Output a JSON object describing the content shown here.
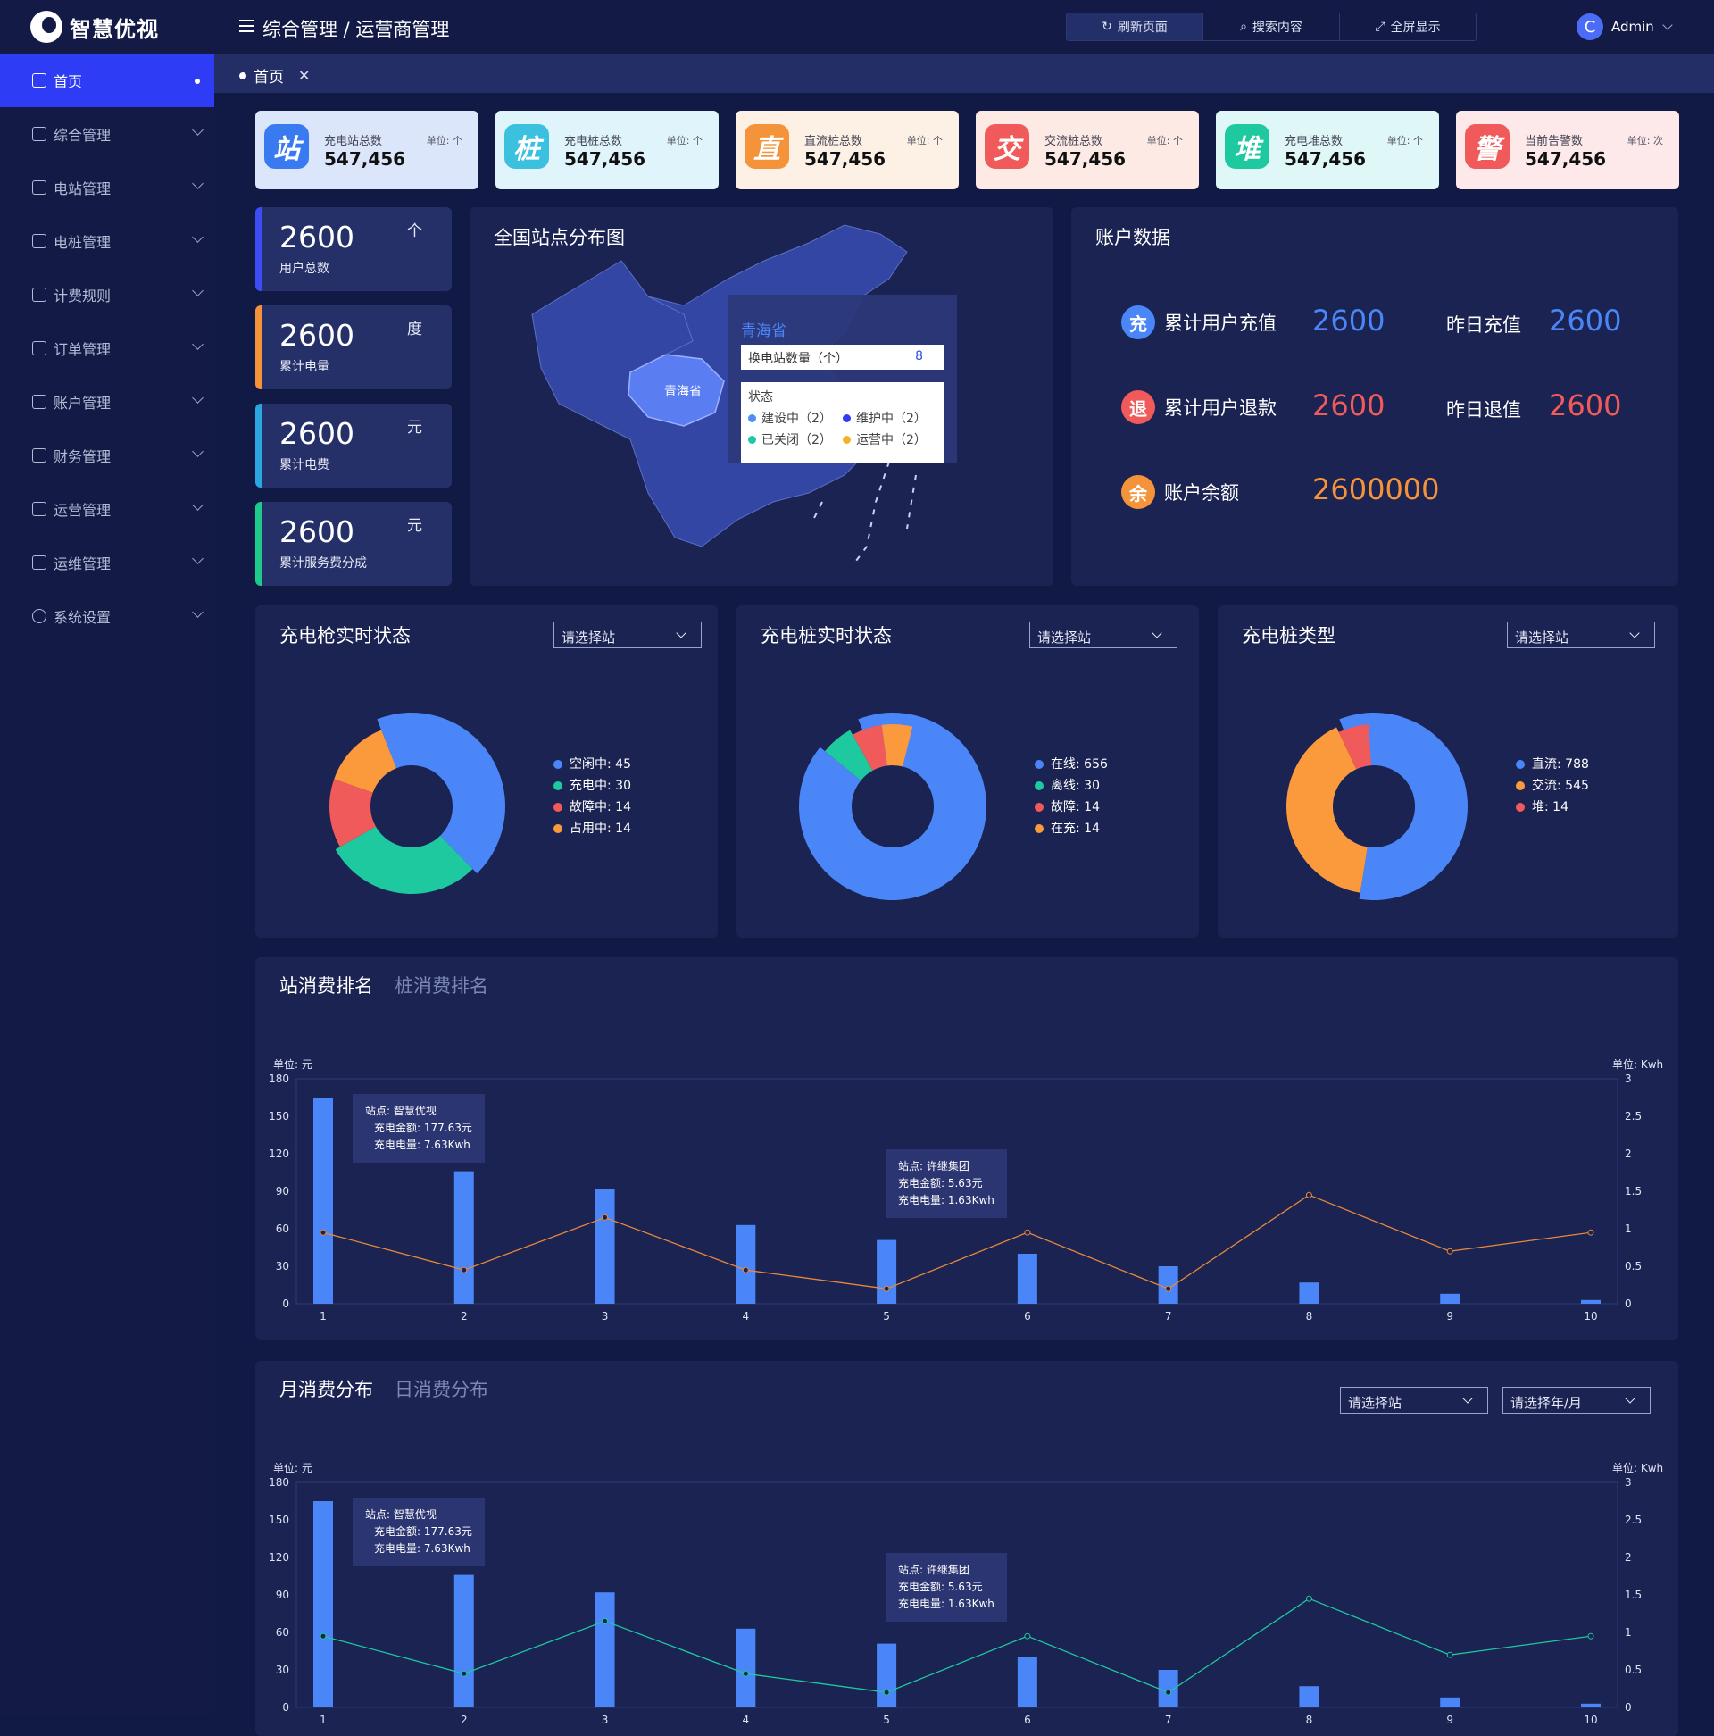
{
  "app": {
    "logo": "智慧优视",
    "breadcrumb": "综合管理 / 运营商管理",
    "user": "Admin",
    "avatar_letter": "C"
  },
  "toolbar": {
    "refresh": "刷新页面",
    "search": "搜索内容",
    "fullscreen": "全屏显示"
  },
  "tab": {
    "label": "首页",
    "close": "✕"
  },
  "sidebar": {
    "items": [
      {
        "label": "首页"
      },
      {
        "label": "综合管理"
      },
      {
        "label": "电站管理"
      },
      {
        "label": "电桩管理"
      },
      {
        "label": "计费规则"
      },
      {
        "label": "订单管理"
      },
      {
        "label": "账户管理"
      },
      {
        "label": "财务管理"
      },
      {
        "label": "运营管理"
      },
      {
        "label": "运维管理"
      },
      {
        "label": "系统设置"
      }
    ]
  },
  "stats": [
    {
      "icon": "站",
      "label": "充电站总数",
      "unit": "单位: 个",
      "value": "547,456",
      "color": "#3a7af0",
      "bg": "#dbe6fb"
    },
    {
      "icon": "桩",
      "label": "充电桩总数",
      "unit": "单位: 个",
      "value": "547,456",
      "color": "#3cc0e0",
      "bg": "#dff5fb"
    },
    {
      "icon": "直",
      "label": "直流桩总数",
      "unit": "单位: 个",
      "value": "547,456",
      "color": "#f5933a",
      "bg": "#fdf0e4"
    },
    {
      "icon": "交",
      "label": "交流桩总数",
      "unit": "单位: 个",
      "value": "547,456",
      "color": "#f05a5a",
      "bg": "#fdeae4"
    },
    {
      "icon": "堆",
      "label": "充电堆总数",
      "unit": "单位: 个",
      "value": "547,456",
      "color": "#1ec9a0",
      "bg": "#e0f7f7"
    },
    {
      "icon": "警",
      "label": "当前告警数",
      "unit": "单位: 次",
      "value": "547,456",
      "color": "#f05a5a",
      "bg": "#fde9e9"
    }
  ],
  "minis": [
    {
      "value": "2600",
      "label": "用户总数",
      "unit": "个",
      "color": "#3d4df5"
    },
    {
      "value": "2600",
      "label": "累计电量",
      "unit": "度",
      "color": "#f5933a"
    },
    {
      "value": "2600",
      "label": "累计电费",
      "unit": "元",
      "color": "#2aa7e0"
    },
    {
      "value": "2600",
      "label": "累计服务费分成",
      "unit": "元",
      "color": "#1ec98a"
    }
  ],
  "map": {
    "title": "全国站点分布图",
    "province": "青海省",
    "region_label": "青海省",
    "count_label": "换电站数量（个）",
    "count": "8",
    "status_title": "状态",
    "statuses": [
      {
        "label": "建设中（2）",
        "color": "#4f8ef7"
      },
      {
        "label": "维护中（2）",
        "color": "#2e3df5"
      },
      {
        "label": "已关闭（2）",
        "color": "#1ec9a0"
      },
      {
        "label": "运营中（2）",
        "color": "#f7b02a"
      }
    ]
  },
  "account": {
    "title": "账户数据",
    "rows": [
      {
        "icon": "充",
        "label": "累计用户充值",
        "value": "2600",
        "label2": "昨日充值",
        "value2": "2600",
        "color": "#4a86f7"
      },
      {
        "icon": "退",
        "label": "累计用户退款",
        "value": "2600",
        "label2": "昨日退值",
        "value2": "2600",
        "color": "#f05a5a"
      },
      {
        "icon": "余",
        "label": "账户余额",
        "value": "2600000",
        "color": "#f5933a"
      }
    ]
  },
  "pies": [
    {
      "title": "充电枪实时状态",
      "select": "请选择站",
      "legend": [
        {
          "label": "空闲中: 45",
          "value": 45,
          "color": "#4a86f7"
        },
        {
          "label": "充电中: 30",
          "value": 30,
          "color": "#1ec9a0"
        },
        {
          "label": "故障中: 14",
          "value": 14,
          "color": "#f05a5a"
        },
        {
          "label": "占用中: 14",
          "value": 14,
          "color": "#fb9a3c"
        }
      ]
    },
    {
      "title": "充电桩实时状态",
      "select": "请选择站",
      "legend": [
        {
          "label": "在线: 656",
          "value": 656,
          "color": "#4a86f7"
        },
        {
          "label": "离线: 30",
          "value": 30,
          "color": "#1ec9a0"
        },
        {
          "label": "故障: 14",
          "value": 14,
          "color": "#f05a5a"
        },
        {
          "label": "在充: 14",
          "value": 14,
          "color": "#fb9a3c"
        }
      ]
    },
    {
      "title": "充电桩类型",
      "select": "请选择站",
      "legend": [
        {
          "label": "直流: 788",
          "value": 788,
          "color": "#4a86f7"
        },
        {
          "label": "交流: 545",
          "value": 545,
          "color": "#fb9a3c"
        },
        {
          "label": "堆: 14",
          "value": 14,
          "color": "#f05a5a"
        }
      ]
    }
  ],
  "rank": {
    "tab1": "站消费排名",
    "tab2": "桩消费排名",
    "unit_left": "单位: 元",
    "unit_right": "单位: Kwh",
    "tip1": {
      "l1": "站点: 智慧优视",
      "l2": "充电金额: 177.63元",
      "l3": "充电电量: 7.63Kwh"
    },
    "tip2": {
      "l1": "站点: 许继集团",
      "l2": "充电金额: 5.63元",
      "l3": "充电电量: 1.63Kwh"
    }
  },
  "monthly": {
    "tab1": "月消费分布",
    "tab2": "日消费分布",
    "select1": "请选择站",
    "select2": "请选择年/月",
    "unit_left": "单位: 元",
    "unit_right": "单位: Kwh",
    "tip1": {
      "l1": "站点: 智慧优视",
      "l2": "充电金额: 177.63元",
      "l3": "充电电量: 7.63Kwh"
    },
    "tip2": {
      "l1": "站点: 许继集团",
      "l2": "充电金额: 5.63元",
      "l3": "充电电量: 1.63Kwh"
    }
  },
  "chart_data": [
    {
      "type": "bar",
      "title": "站消费排名",
      "categories": [
        "1",
        "2",
        "3",
        "4",
        "5",
        "6",
        "7",
        "8",
        "9",
        "10"
      ],
      "series": [
        {
          "name": "充电金额",
          "axis": "left",
          "values": [
            165,
            106,
            92,
            63,
            51,
            40,
            30,
            17,
            8,
            3
          ]
        },
        {
          "name": "充电电量",
          "axis": "right",
          "values": [
            0.95,
            0.45,
            1.15,
            0.45,
            0.2,
            0.95,
            0.2,
            1.45,
            0.7,
            0.95
          ],
          "color": "#e8883a"
        }
      ],
      "ylim_left": [
        0,
        180
      ],
      "yticks_left": [
        "0",
        "30",
        "60",
        "90",
        "120",
        "150",
        "180"
      ],
      "ylim_right": [
        0,
        3
      ],
      "yticks_right": [
        "0",
        "0.5",
        "1",
        "1.5",
        "2",
        "2.5",
        "3"
      ]
    },
    {
      "type": "bar",
      "title": "月消费分布",
      "categories": [
        "1",
        "2",
        "3",
        "4",
        "5",
        "6",
        "7",
        "8",
        "9",
        "10"
      ],
      "series": [
        {
          "name": "充电金额",
          "axis": "left",
          "values": [
            165,
            106,
            92,
            63,
            51,
            40,
            30,
            17,
            8,
            3
          ]
        },
        {
          "name": "充电电量",
          "axis": "right",
          "values": [
            0.95,
            0.45,
            1.15,
            0.45,
            0.2,
            0.95,
            0.2,
            1.45,
            0.7,
            0.95
          ],
          "color": "#1ec9a0"
        }
      ],
      "ylim_left": [
        0,
        180
      ],
      "yticks_left": [
        "0",
        "30",
        "60",
        "90",
        "120",
        "150",
        "180"
      ],
      "ylim_right": [
        0,
        3
      ],
      "yticks_right": [
        "0",
        "0.5",
        "1",
        "1.5",
        "2",
        "2.5",
        "3"
      ]
    }
  ]
}
